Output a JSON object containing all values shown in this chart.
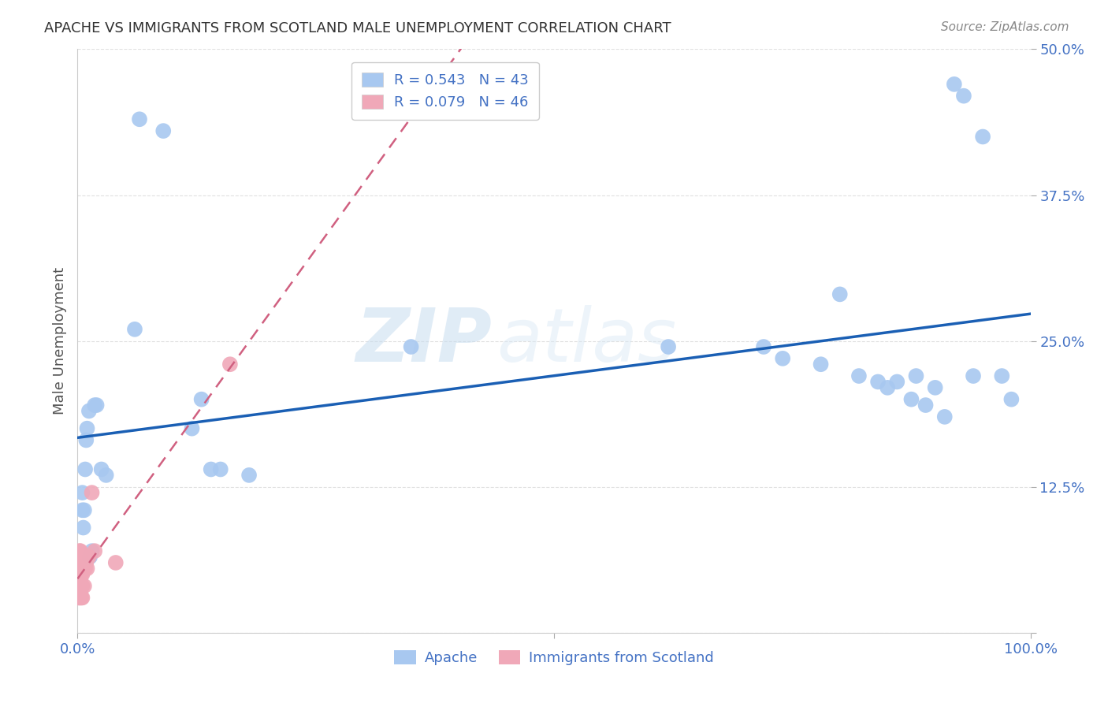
{
  "title": "APACHE VS IMMIGRANTS FROM SCOTLAND MALE UNEMPLOYMENT CORRELATION CHART",
  "source": "Source: ZipAtlas.com",
  "ylabel": "Male Unemployment",
  "xlim": [
    0.0,
    1.0
  ],
  "ylim": [
    0.0,
    0.5
  ],
  "watermark_part1": "ZIP",
  "watermark_part2": "atlas",
  "apache_R": 0.543,
  "apache_N": 43,
  "scotland_R": 0.079,
  "scotland_N": 46,
  "apache_color": "#a8c8f0",
  "apache_line_color": "#1a5fb4",
  "scotland_color": "#f0a8b8",
  "scotland_line_color": "#d06080",
  "background_color": "#ffffff",
  "grid_color": "#dddddd",
  "tick_color": "#4472c4",
  "apache_x": [
    0.005,
    0.005,
    0.006,
    0.007,
    0.008,
    0.009,
    0.01,
    0.012,
    0.013,
    0.015,
    0.018,
    0.02,
    0.025,
    0.03,
    0.06,
    0.065,
    0.09,
    0.12,
    0.13,
    0.14,
    0.15,
    0.18,
    0.35,
    0.62,
    0.72,
    0.74,
    0.78,
    0.8,
    0.82,
    0.84,
    0.85,
    0.86,
    0.875,
    0.88,
    0.89,
    0.9,
    0.91,
    0.92,
    0.93,
    0.94,
    0.95,
    0.97,
    0.98
  ],
  "apache_y": [
    0.105,
    0.12,
    0.09,
    0.105,
    0.14,
    0.165,
    0.175,
    0.19,
    0.065,
    0.07,
    0.195,
    0.195,
    0.14,
    0.135,
    0.26,
    0.44,
    0.43,
    0.175,
    0.2,
    0.14,
    0.14,
    0.135,
    0.245,
    0.245,
    0.245,
    0.235,
    0.23,
    0.29,
    0.22,
    0.215,
    0.21,
    0.215,
    0.2,
    0.22,
    0.195,
    0.21,
    0.185,
    0.47,
    0.46,
    0.22,
    0.425,
    0.22,
    0.2
  ],
  "scotland_x": [
    0.001,
    0.001,
    0.001,
    0.001,
    0.001,
    0.001,
    0.001,
    0.001,
    0.001,
    0.002,
    0.002,
    0.002,
    0.002,
    0.002,
    0.002,
    0.002,
    0.002,
    0.002,
    0.003,
    0.003,
    0.003,
    0.003,
    0.003,
    0.003,
    0.003,
    0.003,
    0.003,
    0.004,
    0.004,
    0.004,
    0.004,
    0.004,
    0.005,
    0.005,
    0.005,
    0.005,
    0.006,
    0.007,
    0.008,
    0.009,
    0.01,
    0.012,
    0.015,
    0.018,
    0.04,
    0.16
  ],
  "scotland_y": [
    0.03,
    0.035,
    0.04,
    0.04,
    0.045,
    0.05,
    0.055,
    0.06,
    0.065,
    0.03,
    0.035,
    0.04,
    0.045,
    0.05,
    0.055,
    0.06,
    0.065,
    0.07,
    0.03,
    0.035,
    0.04,
    0.045,
    0.05,
    0.055,
    0.06,
    0.065,
    0.07,
    0.03,
    0.04,
    0.05,
    0.055,
    0.065,
    0.03,
    0.04,
    0.05,
    0.065,
    0.055,
    0.04,
    0.055,
    0.06,
    0.055,
    0.065,
    0.12,
    0.07,
    0.06,
    0.23
  ]
}
